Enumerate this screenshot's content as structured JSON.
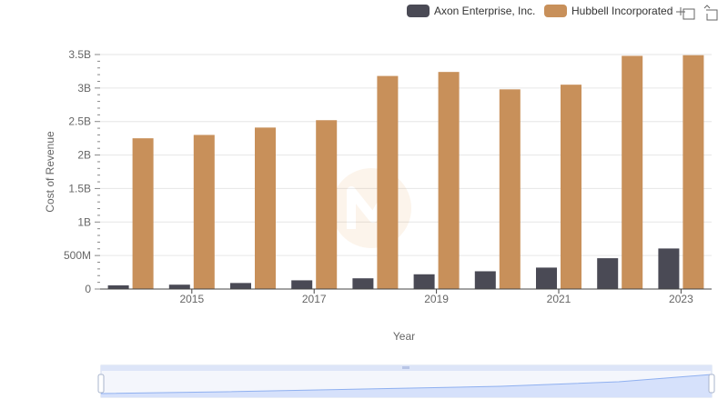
{
  "chart_data": {
    "type": "bar",
    "title": "",
    "xlabel": "Year",
    "ylabel": "Cost of Revenue",
    "categories": [
      "2014",
      "2015",
      "2016",
      "2017",
      "2018",
      "2019",
      "2020",
      "2021",
      "2022",
      "2023"
    ],
    "x_tick_labels": [
      "2015",
      "2017",
      "2019",
      "2021",
      "2023"
    ],
    "y_tick_labels": [
      "0",
      "500M",
      "1B",
      "1.5B",
      "2B",
      "2.5B",
      "3B",
      "3.5B"
    ],
    "y_tick_values": [
      0,
      500000000,
      1000000000,
      1500000000,
      2000000000,
      2500000000,
      3000000000,
      3500000000
    ],
    "ylim": [
      0,
      3500000000
    ],
    "grid": true,
    "legend_position": "top-right",
    "series": [
      {
        "name": "Axon Enterprise, Inc.",
        "color": "#4a4a55",
        "values": [
          55000000,
          65000000,
          90000000,
          130000000,
          160000000,
          220000000,
          265000000,
          320000000,
          460000000,
          605000000
        ]
      },
      {
        "name": "Hubbell Incorporated",
        "color": "#c8905a",
        "values": [
          2250000000,
          2300000000,
          2410000000,
          2520000000,
          3180000000,
          3240000000,
          2980000000,
          3050000000,
          3480000000,
          3490000000
        ]
      }
    ]
  },
  "toolbar": {
    "zoom_icon": "zoom-select-icon",
    "reset_icon": "zoom-reset-icon"
  },
  "data_zoom": {
    "handle_color": "#ffffff",
    "fill_color": "#d6e1fb",
    "line_color": "#8fb0f0"
  }
}
